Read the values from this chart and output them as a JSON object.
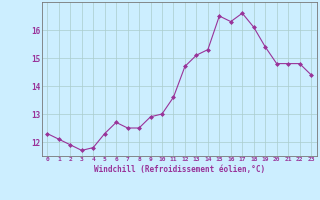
{
  "x": [
    0,
    1,
    2,
    3,
    4,
    5,
    6,
    7,
    8,
    9,
    10,
    11,
    12,
    13,
    14,
    15,
    16,
    17,
    18,
    19,
    20,
    21,
    22,
    23
  ],
  "y": [
    12.3,
    12.1,
    11.9,
    11.7,
    11.8,
    12.3,
    12.7,
    12.5,
    12.5,
    12.9,
    13.0,
    13.6,
    14.7,
    15.1,
    15.3,
    16.5,
    16.3,
    16.6,
    16.1,
    15.4,
    14.8,
    14.8,
    14.8,
    14.4
  ],
  "line_color": "#993399",
  "marker": "D",
  "marker_size": 2,
  "bg_color": "#cceeff",
  "grid_color": "#aacccc",
  "xlabel": "Windchill (Refroidissement éolien,°C)",
  "xlabel_color": "#993399",
  "tick_color": "#993399",
  "axis_color": "#777777",
  "ylim": [
    11.5,
    17.0
  ],
  "xlim": [
    -0.5,
    23.5
  ],
  "yticks": [
    12,
    13,
    14,
    15,
    16
  ],
  "xtick_labels": [
    "0",
    "1",
    "2",
    "3",
    "4",
    "5",
    "6",
    "7",
    "8",
    "9",
    "10",
    "11",
    "12",
    "13",
    "14",
    "15",
    "16",
    "17",
    "18",
    "19",
    "20",
    "21",
    "22",
    "23"
  ]
}
